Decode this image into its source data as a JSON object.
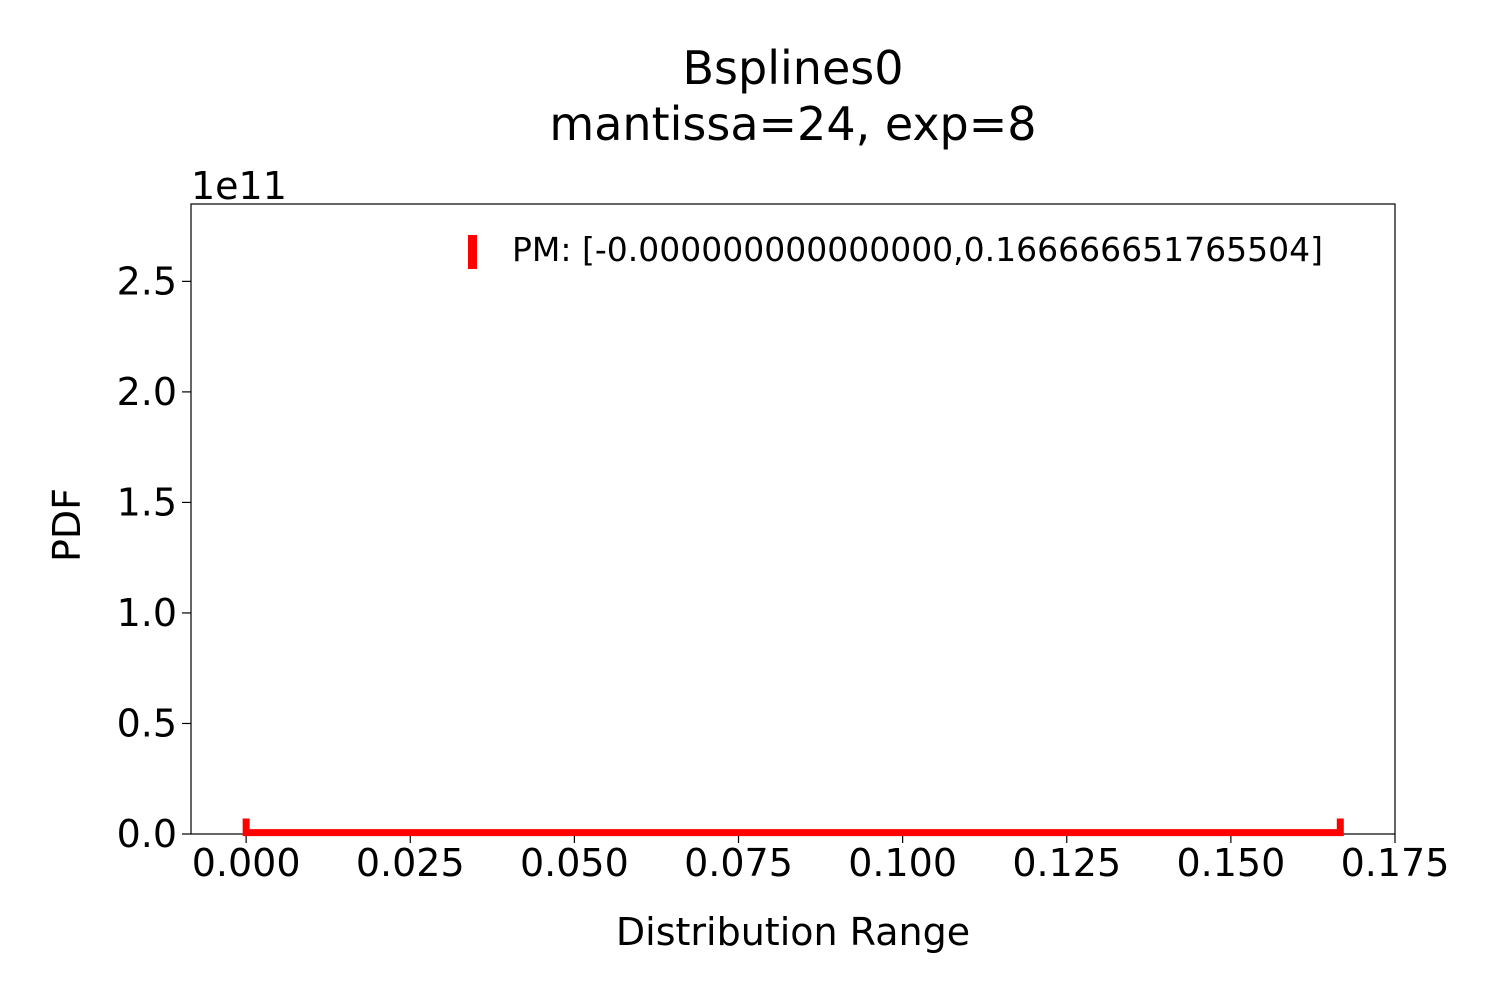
{
  "chart_data": {
    "type": "line",
    "title": "Bsplines0",
    "subtitle": "mantissa=24, exp=8",
    "xlabel": "Distribution Range",
    "ylabel": "PDF",
    "y_offset_text": "1e11",
    "xlim": [
      -0.0084,
      0.175
    ],
    "ylim": [
      0,
      2.85
    ],
    "x_ticks": [
      0.0,
      0.025,
      0.05,
      0.075,
      0.1,
      0.125,
      0.15,
      0.175
    ],
    "x_tick_labels": [
      "0.000",
      "0.025",
      "0.050",
      "0.075",
      "0.100",
      "0.125",
      "0.150",
      "0.175"
    ],
    "y_ticks": [
      0.0,
      0.5,
      1.0,
      1.5,
      2.0,
      2.5
    ],
    "y_tick_labels": [
      "0.0",
      "0.5",
      "1.0",
      "1.5",
      "2.0",
      "2.5"
    ],
    "grid": false,
    "legend_position": "top-right",
    "series": [
      {
        "name": "PM: [-0.000000000000000,0.166666651765504]",
        "color": "#ff0000",
        "x": [
          0.0,
          0.0,
          0.166666651765504,
          0.166666651765504
        ],
        "y": [
          0.07,
          0.006,
          0.006,
          0.07
        ]
      }
    ]
  }
}
